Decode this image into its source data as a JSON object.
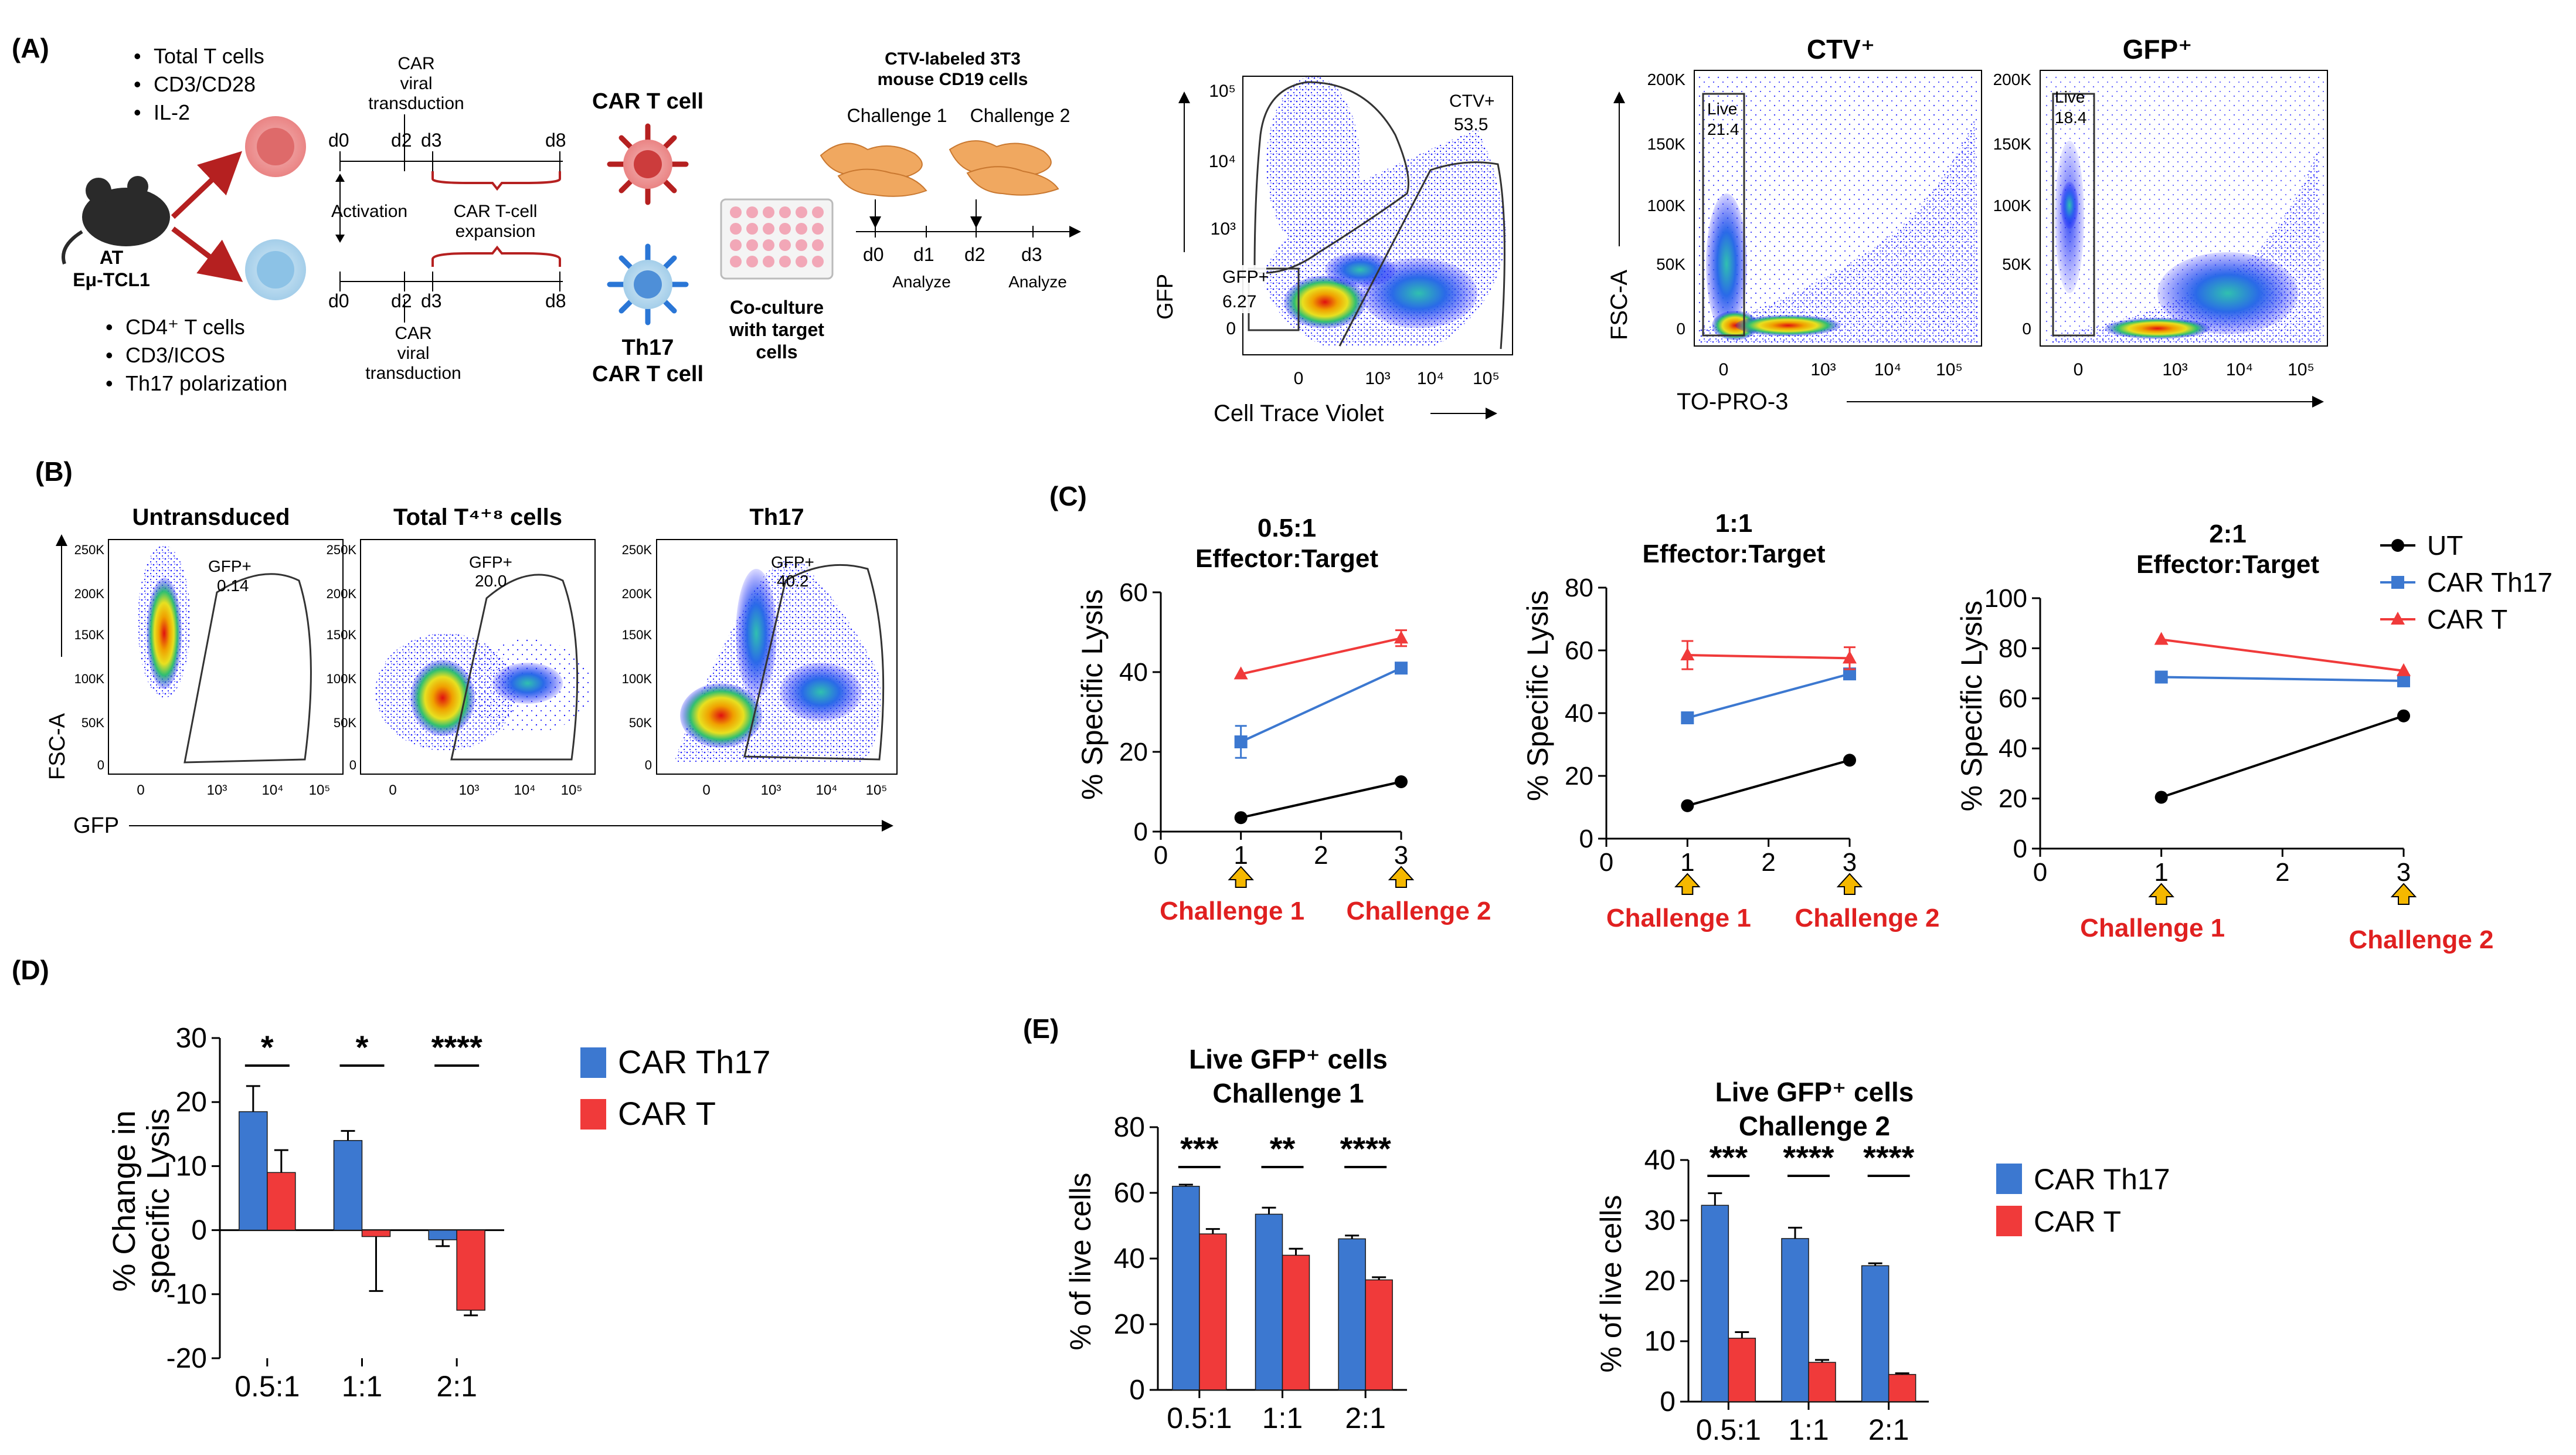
{
  "colors": {
    "th17": "#3c78d0",
    "cart": "#f03a3a",
    "ut": "#000000",
    "red_text": "#e02020",
    "arrow_fill": "#f5b800",
    "axis": "#000000",
    "dark_red": "#b52020"
  },
  "panelA": {
    "label": "(A)",
    "mouse": {
      "line1": "AT",
      "line2": "Eμ-TCL1"
    },
    "top_bullets": [
      "Total T cells",
      "CD3/CD28",
      "IL-2"
    ],
    "bottom_bullets": [
      "CD4⁺ T cells",
      "CD3/ICOS",
      "Th17 polarization"
    ],
    "activation": "Activation",
    "days_top": [
      "d0",
      "d2",
      "d3",
      "d8"
    ],
    "days_bottom": [
      "d0",
      "d2",
      "d3",
      "d8"
    ],
    "transduction_lines": [
      "CAR",
      "viral",
      "transduction"
    ],
    "expansion_lines": [
      "CAR T-cell",
      "expansion"
    ],
    "car_t": "CAR T cell",
    "th17_lines": [
      "Th17",
      "CAR T cell"
    ],
    "coculture_lines": [
      "Co-culture",
      "with target",
      "cells"
    ],
    "ctv_title_lines": [
      "CTV-labeled 3T3",
      "mouse CD19 cells"
    ],
    "challenges": [
      "Challenge 1",
      "Challenge 2"
    ],
    "timeline_days": [
      "d0",
      "d1",
      "d2",
      "d3"
    ],
    "analyze": [
      "Analyze",
      "Analyze"
    ],
    "flow_ctv": {
      "ylabel": "GFP",
      "xlabel": "Cell Trace Violet",
      "gate1_name": "CTV+",
      "gate1_value": "53.5",
      "gate2_name": "GFP+",
      "gate2_value": "6.27",
      "xticks": [
        "0",
        "10³",
        "10⁴",
        "10⁵"
      ],
      "yticks": [
        "10⁵",
        "10⁴",
        "10³",
        "0"
      ]
    },
    "flow_live": {
      "title_ctv": "CTV⁺",
      "title_gfp": "GFP⁺",
      "ylabel": "FSC-A",
      "xlabel": "TO-PRO-3",
      "yticks": [
        "200K",
        "150K",
        "100K",
        "50K",
        "0"
      ],
      "xticks": [
        "0",
        "10³",
        "10⁴",
        "10⁵"
      ],
      "gate_name": "Live",
      "value_ctv": "21.4",
      "value_gfp": "18.4"
    }
  },
  "panelB": {
    "label": "(B)",
    "titles": [
      "Untransduced",
      "Total T⁴⁺⁸ cells",
      "Th17"
    ],
    "gate_name": "GFP+",
    "gate_values": [
      "0.14",
      "20.0",
      "40.2"
    ],
    "ylabel": "FSC-A",
    "xlabel": "GFP",
    "yticks": [
      "250K",
      "200K",
      "150K",
      "100K",
      "50K",
      "0"
    ],
    "xticks": [
      "0",
      "10³",
      "10⁴",
      "10⁵"
    ]
  },
  "chart_data": [
    {
      "panel": "C",
      "panel_label": "(C)",
      "type": "line",
      "title_lines": [
        "0.5:1",
        "Effector:Target"
      ],
      "ylabel": "% Specific Lysis",
      "x": [
        1,
        3
      ],
      "xlim": [
        0,
        3
      ],
      "ylim": [
        0,
        60
      ],
      "yticks": [
        0,
        20,
        40,
        60
      ],
      "xticks": [
        0,
        1,
        2,
        3
      ],
      "series": [
        {
          "name": "UT",
          "values": [
            3.5,
            12.5
          ],
          "err": [
            0,
            0
          ]
        },
        {
          "name": "CAR Th17",
          "values": [
            22.5,
            41
          ],
          "err": [
            4,
            0.8
          ]
        },
        {
          "name": "CAR T",
          "values": [
            39.5,
            48.5
          ],
          "err": [
            0,
            2
          ]
        }
      ],
      "annotations": [
        "Challenge 1",
        "Challenge 2"
      ]
    },
    {
      "panel": "C",
      "type": "line",
      "title_lines": [
        "1:1",
        "Effector:Target"
      ],
      "ylabel": "% Specific Lysis",
      "x": [
        1,
        3
      ],
      "xlim": [
        0,
        3
      ],
      "ylim": [
        0,
        80
      ],
      "yticks": [
        0,
        20,
        40,
        60,
        80
      ],
      "xticks": [
        0,
        1,
        2,
        3
      ],
      "series": [
        {
          "name": "UT",
          "values": [
            10.5,
            25
          ],
          "err": [
            0,
            0
          ]
        },
        {
          "name": "CAR Th17",
          "values": [
            38.5,
            52.5
          ],
          "err": [
            0,
            1
          ]
        },
        {
          "name": "CAR T",
          "values": [
            58.5,
            57.5
          ],
          "err": [
            4.5,
            3.5
          ]
        }
      ],
      "annotations": [
        "Challenge 1",
        "Challenge 2"
      ]
    },
    {
      "panel": "C",
      "type": "line",
      "title_lines": [
        "2:1",
        "Effector:Target"
      ],
      "ylabel": "% Specific Lysis",
      "x": [
        1,
        3
      ],
      "xlim": [
        0,
        3
      ],
      "ylim": [
        0,
        100
      ],
      "yticks": [
        0,
        20,
        40,
        60,
        80,
        100
      ],
      "xticks": [
        0,
        1,
        2,
        3
      ],
      "series": [
        {
          "name": "UT",
          "values": [
            20.5,
            53
          ],
          "err": [
            0,
            0
          ]
        },
        {
          "name": "CAR Th17",
          "values": [
            68.5,
            67
          ],
          "err": [
            0,
            0
          ]
        },
        {
          "name": "CAR T",
          "values": [
            83.5,
            71
          ],
          "err": [
            0,
            0
          ]
        }
      ],
      "annotations": [
        "Challenge 1",
        "Challenge 2"
      ],
      "legend": [
        "UT",
        "CAR Th17",
        "CAR T"
      ],
      "legend_position": "top-right"
    },
    {
      "panel": "D",
      "panel_label": "(D)",
      "type": "bar",
      "categories": [
        "0.5:1",
        "1:1",
        "2:1"
      ],
      "ylabel_lines": [
        "% Change in",
        "specific Lysis"
      ],
      "ylim": [
        -20,
        30
      ],
      "yticks": [
        -20,
        -10,
        0,
        10,
        20,
        30
      ],
      "series": [
        {
          "name": "CAR Th17",
          "values": [
            18.5,
            14,
            -1.5
          ],
          "err": [
            4,
            1.5,
            1
          ]
        },
        {
          "name": "CAR T",
          "values": [
            9,
            -1,
            -12.5
          ],
          "err": [
            3.5,
            8.5,
            0.8
          ]
        }
      ],
      "significance": [
        "*",
        "*",
        "****"
      ],
      "legend": [
        "CAR Th17",
        "CAR T"
      ],
      "legend_position": "right"
    },
    {
      "panel": "E",
      "panel_label": "(E)",
      "type": "bar",
      "title_lines": [
        "Live GFP⁺ cells",
        "Challenge 1"
      ],
      "categories": [
        "0.5:1",
        "1:1",
        "2:1"
      ],
      "ylabel": "% of live cells",
      "ylim": [
        0,
        80
      ],
      "yticks": [
        0,
        20,
        40,
        60,
        80
      ],
      "series": [
        {
          "name": "CAR Th17",
          "values": [
            62,
            53.5,
            46
          ],
          "err": [
            0.5,
            2,
            1
          ]
        },
        {
          "name": "CAR T",
          "values": [
            47.5,
            41,
            33.5
          ],
          "err": [
            1.5,
            2,
            0.8
          ]
        }
      ],
      "significance": [
        "***",
        "**",
        "****"
      ]
    },
    {
      "panel": "E",
      "type": "bar",
      "title_lines": [
        "Live GFP⁺ cells",
        "Challenge 2"
      ],
      "categories": [
        "0.5:1",
        "1:1",
        "2:1"
      ],
      "ylabel": "% of live cells",
      "ylim": [
        0,
        40
      ],
      "yticks": [
        0,
        10,
        20,
        30,
        40
      ],
      "series": [
        {
          "name": "CAR Th17",
          "values": [
            32.5,
            27,
            22.5
          ],
          "err": [
            2,
            1.8,
            0.4
          ]
        },
        {
          "name": "CAR T",
          "values": [
            10.5,
            6.5,
            4.5
          ],
          "err": [
            1,
            0.4,
            0.2
          ]
        }
      ],
      "significance": [
        "***",
        "****",
        "****"
      ],
      "legend": [
        "CAR Th17",
        "CAR T"
      ],
      "legend_position": "right"
    }
  ]
}
